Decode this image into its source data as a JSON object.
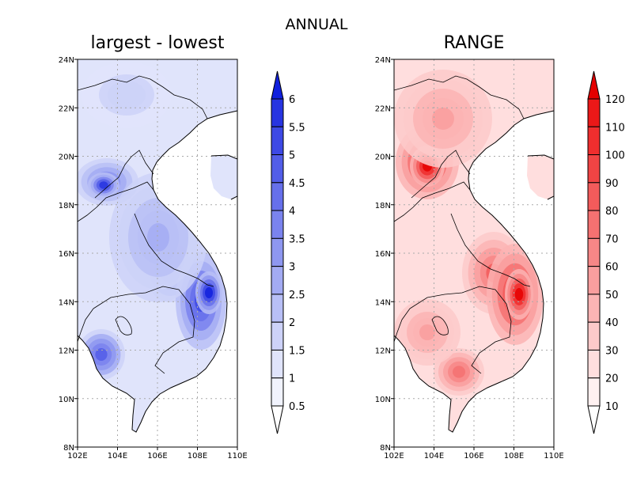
{
  "figure": {
    "title": "ANNUAL"
  },
  "panels": [
    {
      "id": "left",
      "title": "largest - lowest",
      "colormap": "blue",
      "colorbar": {
        "levels": [
          "0.5",
          "1",
          "1.5",
          "2",
          "2.5",
          "3",
          "3.5",
          "4",
          "4.5",
          "5",
          "5.5",
          "6"
        ],
        "min_label": "0.5",
        "max_label": "6"
      }
    },
    {
      "id": "right",
      "title": "RANGE",
      "colormap": "red",
      "colorbar": {
        "levels": [
          "10",
          "20",
          "30",
          "40",
          "50",
          "60",
          "70",
          "80",
          "90",
          "100",
          "110",
          "120"
        ],
        "min_label": "10",
        "max_label": "120"
      }
    }
  ],
  "map_axes": {
    "lon_ticks": [
      "102E",
      "104E",
      "106E",
      "108E",
      "110E"
    ],
    "lat_ticks": [
      "8N",
      "10N",
      "12N",
      "14N",
      "16N",
      "18N",
      "20N",
      "22N",
      "24N"
    ]
  },
  "palettes": {
    "blue": [
      "#f1f3fd",
      "#e0e4fb",
      "#cdd2f8",
      "#b8bff6",
      "#a3abf3",
      "#8e97f0",
      "#7a83ee",
      "#6670eb",
      "#525de8",
      "#3d49e5",
      "#2734e1",
      "#1020dd"
    ],
    "red": [
      "#fff1f1",
      "#ffdede",
      "#fdcaca",
      "#fbb4b4",
      "#f99e9e",
      "#f78787",
      "#f57171",
      "#f35b5b",
      "#f14444",
      "#ef2e2e",
      "#eb1818",
      "#e50000"
    ]
  }
}
